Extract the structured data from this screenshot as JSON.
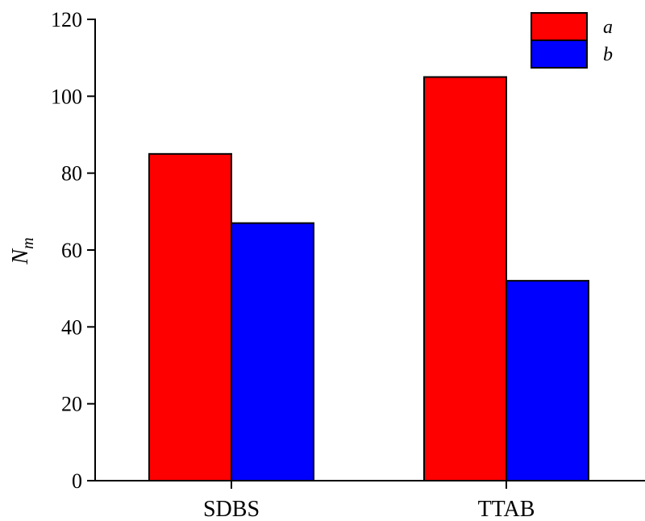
{
  "chart_data": {
    "type": "bar",
    "title": "",
    "xlabel": "",
    "ylabel_main": "N",
    "ylabel_sub": "m",
    "categories": [
      "SDBS",
      "TTAB"
    ],
    "series": [
      {
        "name": "a",
        "color": "#ff0000",
        "values": [
          85,
          105
        ]
      },
      {
        "name": "b",
        "color": "#0000ff",
        "values": [
          67,
          52
        ]
      }
    ],
    "ylim": [
      0,
      120
    ],
    "yticks": [
      0,
      20,
      40,
      60,
      80,
      100,
      120
    ],
    "grid": false,
    "legend_position": "top-right"
  }
}
